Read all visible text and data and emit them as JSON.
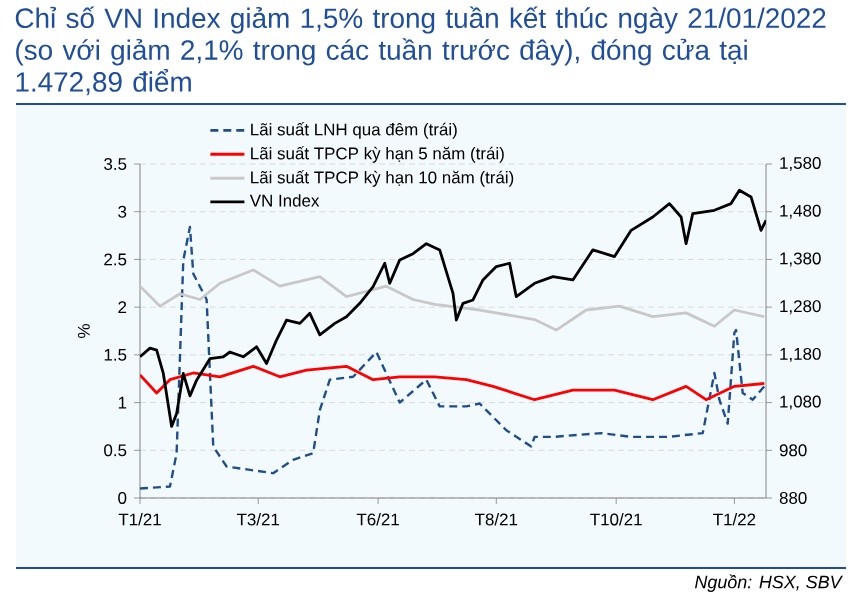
{
  "chart_data": {
    "type": "line",
    "title": "Chỉ số VN Index giảm 1,5% trong tuần kết thúc ngày 21/01/2022 (so với giảm 2,1% trong các tuần trước đây), đóng cửa tại 1.472,89 điểm",
    "ylabel": "%",
    "annotations": [
      "Nguồn: HSX, SBV"
    ],
    "xlim": [
      "2021-01-09",
      "2022-01-20"
    ],
    "xticks": [
      {
        "value": "2021-01-09",
        "label": "T1/21"
      },
      {
        "value": "2021-03-21",
        "label": "T3/21"
      },
      {
        "value": "2021-06-01",
        "label": "T6/21"
      },
      {
        "value": "2021-08-11",
        "label": "T8/21"
      },
      {
        "value": "2021-10-22",
        "label": "T10/21"
      },
      {
        "value": "2022-01-01",
        "label": "T1/22"
      }
    ],
    "ylim": [
      0,
      3.5
    ],
    "yticks": [
      0,
      0.5,
      1,
      1.5,
      2,
      2.5,
      3,
      3.5
    ],
    "y2lim": [
      880,
      1580
    ],
    "y2ticks": [
      {
        "value": 880,
        "label": "880"
      },
      {
        "value": 980,
        "label": "980"
      },
      {
        "value": 1080,
        "label": "1,080"
      },
      {
        "value": 1180,
        "label": "1,180"
      },
      {
        "value": 1280,
        "label": "1,280"
      },
      {
        "value": 1380,
        "label": "1,380"
      },
      {
        "value": 1480,
        "label": "1,480"
      },
      {
        "value": 1580,
        "label": "1,580"
      }
    ],
    "grid": "y",
    "legend": "top",
    "marker": "none",
    "series": [
      {
        "name": "Lãi suất LNH qua đêm (trái)",
        "color": "#1f4e8c",
        "line_style": "dashed",
        "x": [
          "2021-01-09",
          "2021-01-27",
          "2021-01-31",
          "2021-02-04",
          "2021-02-08",
          "2021-02-10",
          "2021-02-18",
          "2021-02-22",
          "2021-03-02",
          "2021-03-18",
          "2021-03-30",
          "2021-04-11",
          "2021-04-23",
          "2021-04-27",
          "2021-05-03",
          "2021-05-17",
          "2021-05-31",
          "2021-06-14",
          "2021-06-30",
          "2021-07-08",
          "2021-07-24",
          "2021-08-01",
          "2021-08-17",
          "2021-09-01",
          "2021-09-03",
          "2021-09-14",
          "2021-10-13",
          "2021-10-31",
          "2021-11-22",
          "2021-12-13",
          "2021-12-20",
          "2021-12-23",
          "2021-12-28",
          "2022-01-01",
          "2022-01-02",
          "2022-01-06",
          "2022-01-12",
          "2022-01-19"
        ],
        "values": [
          0.1,
          0.12,
          0.47,
          2.49,
          2.84,
          2.35,
          2.08,
          0.54,
          0.33,
          0.29,
          0.26,
          0.4,
          0.47,
          0.92,
          1.24,
          1.27,
          1.53,
          1.0,
          1.24,
          0.96,
          0.96,
          0.99,
          0.71,
          0.54,
          0.64,
          0.64,
          0.68,
          0.64,
          0.64,
          0.68,
          1.31,
          1.03,
          0.78,
          1.73,
          1.76,
          1.1,
          1.03,
          1.17
        ]
      },
      {
        "name": "Lãi suất TPCP kỳ hạn 5 năm (trái)",
        "color": "#ff0000",
        "line_style": "solid",
        "x": [
          "2021-01-09",
          "2021-01-19",
          "2021-01-27",
          "2021-02-10",
          "2021-02-26",
          "2021-03-18",
          "2021-04-03",
          "2021-04-19",
          "2021-05-13",
          "2021-05-29",
          "2021-06-14",
          "2021-07-05",
          "2021-07-24",
          "2021-08-09",
          "2021-09-03",
          "2021-09-26",
          "2021-10-21",
          "2021-11-13",
          "2021-12-03",
          "2021-12-15",
          "2022-01-01",
          "2022-01-19"
        ],
        "values": [
          1.29,
          1.1,
          1.24,
          1.31,
          1.27,
          1.38,
          1.27,
          1.34,
          1.38,
          1.24,
          1.27,
          1.27,
          1.24,
          1.17,
          1.03,
          1.13,
          1.13,
          1.03,
          1.17,
          1.03,
          1.17,
          1.2
        ]
      },
      {
        "name": "Lãi suất TPCP kỳ hạn 10 năm (trái)",
        "color": "#c8c8c8",
        "line_style": "solid",
        "x": [
          "2021-01-09",
          "2021-01-21",
          "2021-02-02",
          "2021-02-14",
          "2021-02-26",
          "2021-03-18",
          "2021-04-03",
          "2021-04-27",
          "2021-05-13",
          "2021-06-06",
          "2021-06-22",
          "2021-07-05",
          "2021-08-01",
          "2021-09-03",
          "2021-09-16",
          "2021-10-04",
          "2021-10-24",
          "2021-11-13",
          "2021-12-03",
          "2021-12-20",
          "2022-01-01",
          "2022-01-19"
        ],
        "values": [
          2.22,
          2.01,
          2.14,
          2.08,
          2.25,
          2.39,
          2.22,
          2.32,
          2.11,
          2.22,
          2.08,
          2.03,
          1.97,
          1.87,
          1.76,
          1.97,
          2.01,
          1.9,
          1.94,
          1.8,
          1.97,
          1.9
        ]
      },
      {
        "name": "VN Index",
        "color": "#000000",
        "line_style": "solid",
        "axis": "y2",
        "x": [
          "2021-01-09",
          "2021-01-15",
          "2021-01-19",
          "2021-01-23",
          "2021-01-28",
          "2021-01-31",
          "2021-02-04",
          "2021-02-08",
          "2021-02-12",
          "2021-02-20",
          "2021-02-28",
          "2021-03-04",
          "2021-03-12",
          "2021-03-20",
          "2021-03-26",
          "2021-04-01",
          "2021-04-07",
          "2021-04-15",
          "2021-04-21",
          "2021-04-27",
          "2021-05-06",
          "2021-05-13",
          "2021-05-21",
          "2021-05-29",
          "2021-06-05",
          "2021-06-08",
          "2021-06-14",
          "2021-06-22",
          "2021-06-30",
          "2021-07-08",
          "2021-07-16",
          "2021-07-18",
          "2021-07-22",
          "2021-07-28",
          "2021-08-03",
          "2021-08-11",
          "2021-08-19",
          "2021-08-23",
          "2021-09-03",
          "2021-09-14",
          "2021-09-26",
          "2021-10-08",
          "2021-10-21",
          "2021-10-31",
          "2021-11-13",
          "2021-11-23",
          "2021-11-30",
          "2021-12-03",
          "2021-12-07",
          "2021-12-20",
          "2021-12-30",
          "2022-01-04",
          "2022-01-11",
          "2022-01-17",
          "2022-01-20"
        ],
        "values": [
          1176,
          1194,
          1190,
          1141,
          1030,
          1057,
          1141,
          1094,
          1127,
          1172,
          1176,
          1186,
          1176,
          1197,
          1162,
          1211,
          1253,
          1246,
          1267,
          1222,
          1246,
          1260,
          1288,
          1323,
          1372,
          1330,
          1379,
          1392,
          1413,
          1400,
          1309,
          1253,
          1288,
          1295,
          1337,
          1365,
          1372,
          1302,
          1330,
          1344,
          1337,
          1400,
          1386,
          1441,
          1469,
          1497,
          1469,
          1413,
          1476,
          1483,
          1497,
          1525,
          1511,
          1441,
          1462
        ]
      }
    ]
  }
}
